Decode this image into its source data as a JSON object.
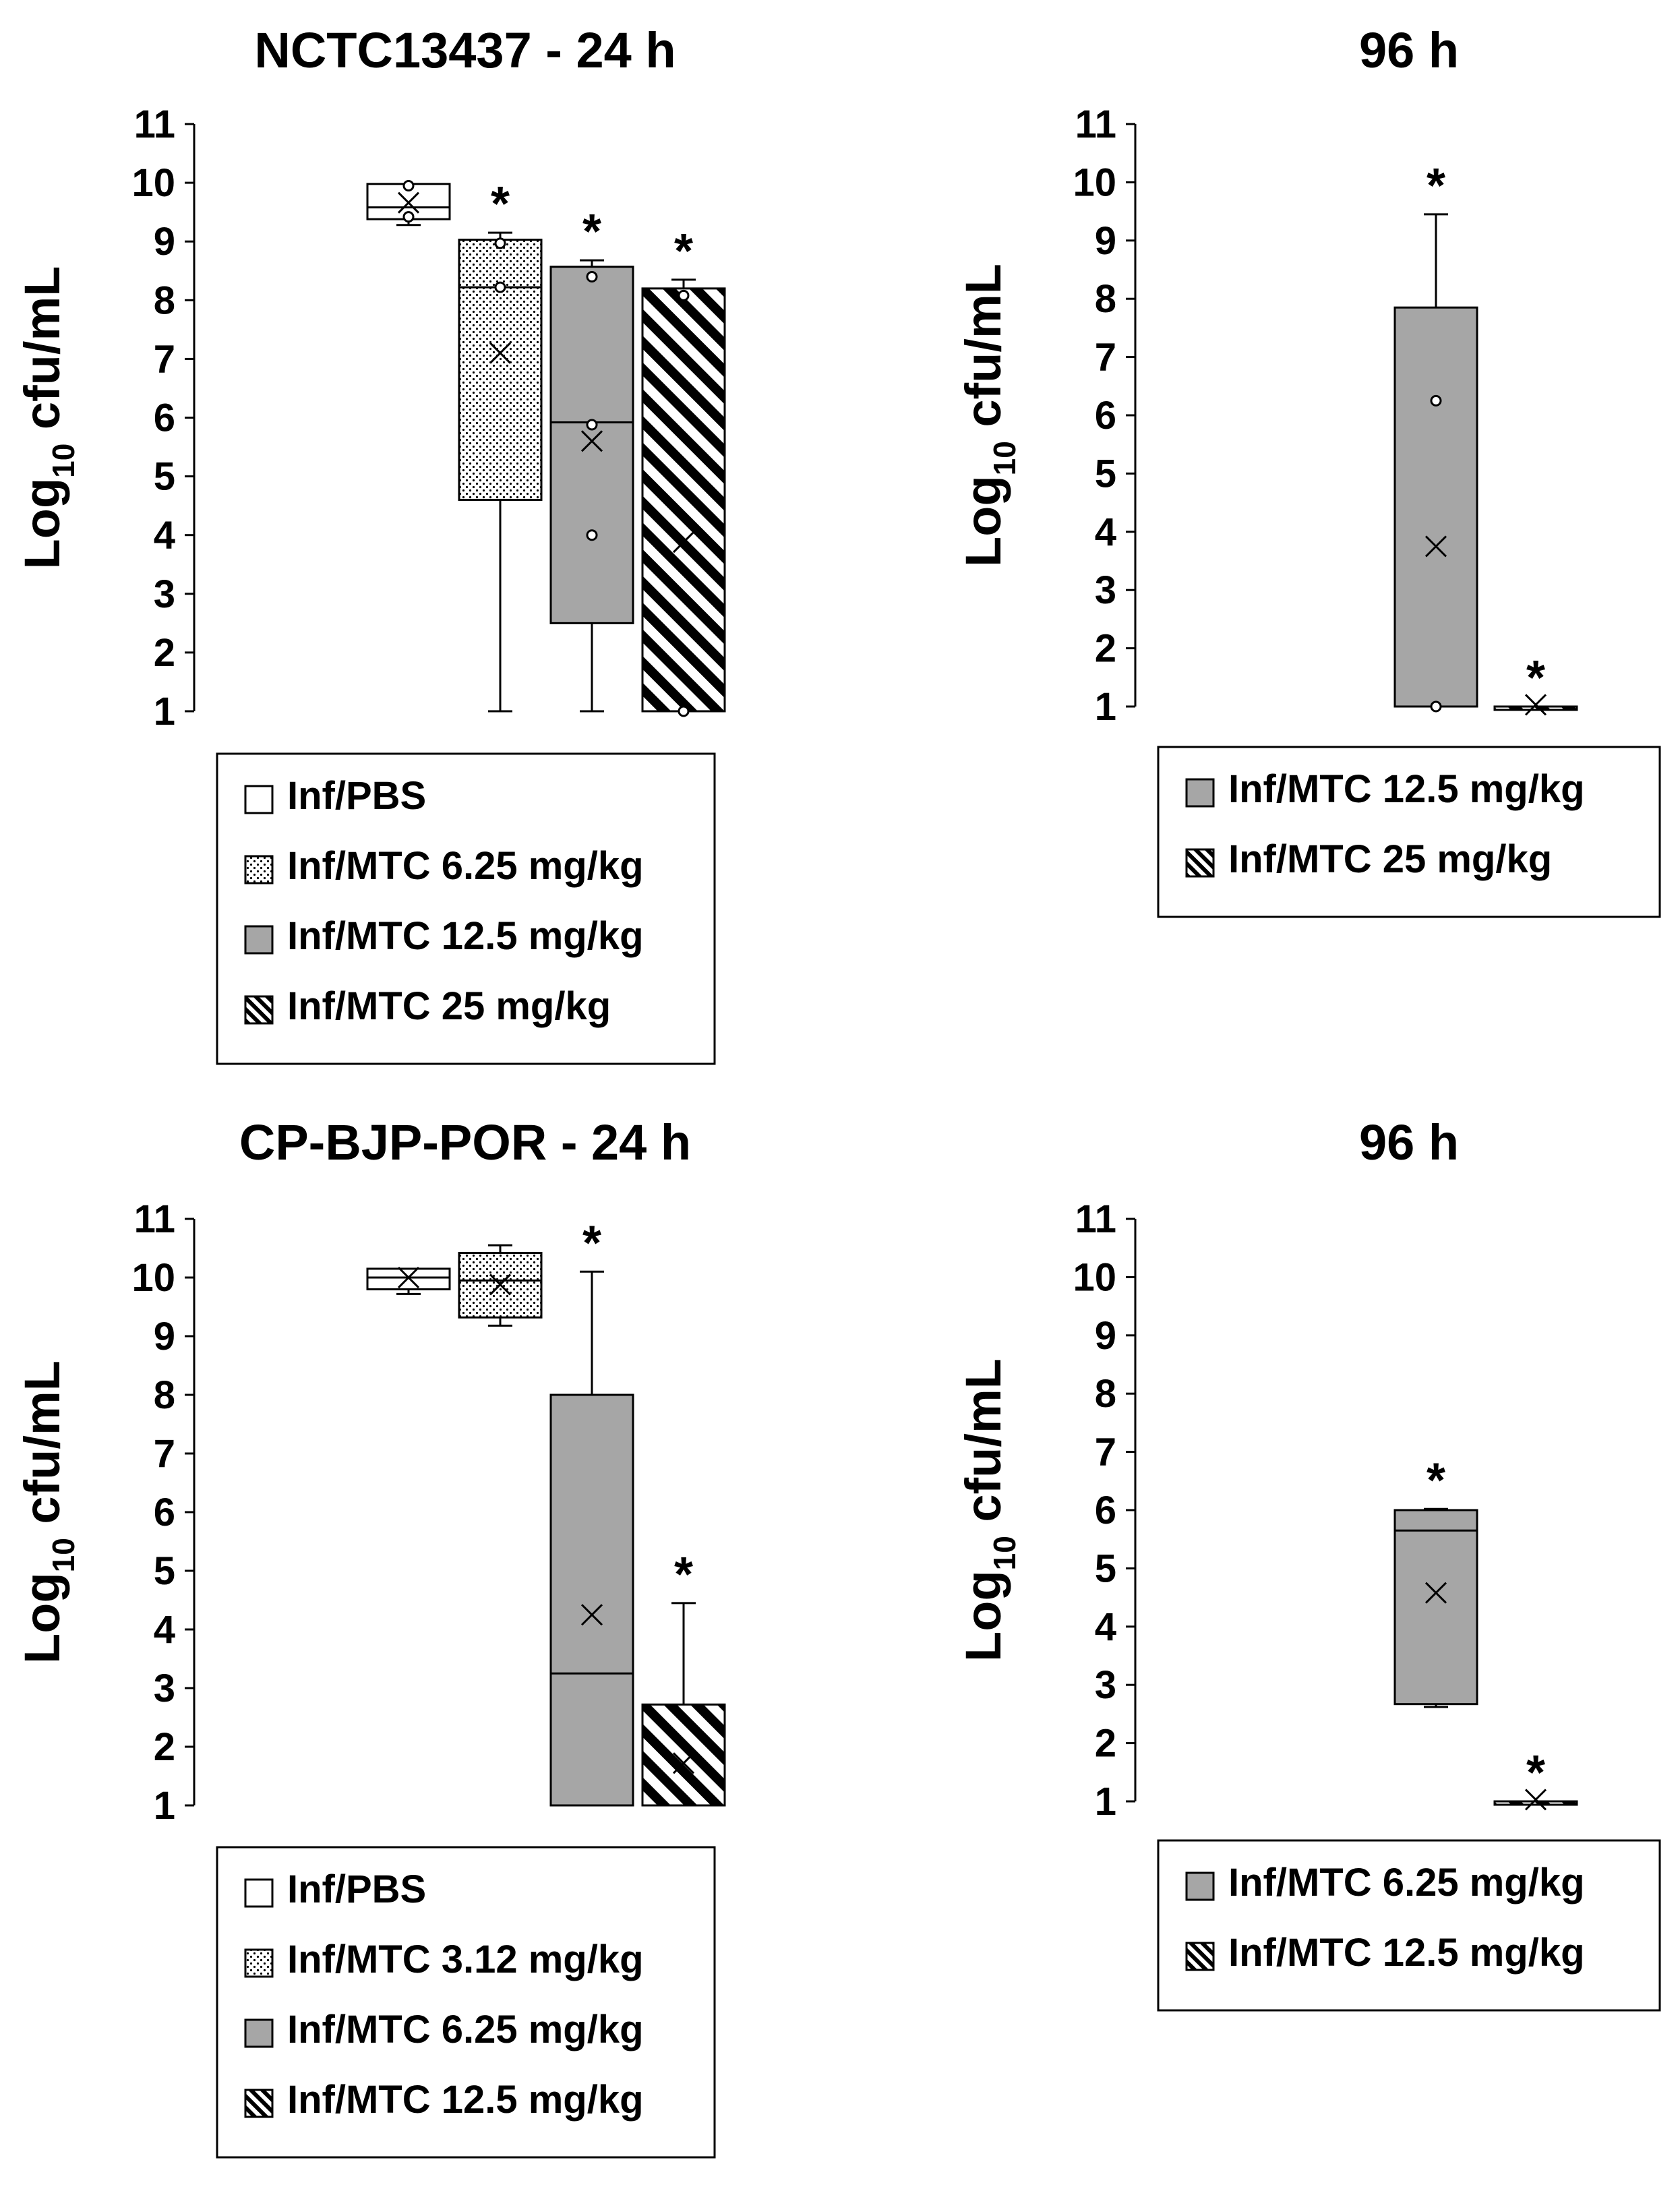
{
  "colors": {
    "white": "#ffffff",
    "gray": "#a6a6a6",
    "black": "#000000"
  },
  "chart_data": [
    {
      "type": "box",
      "title": "NCTC13437 - 24 h",
      "ylabel": {
        "prefix": "Log",
        "sub": "10",
        "suffix": " cfu/mL"
      },
      "ylim": [
        1,
        11
      ],
      "yticks": [
        "1",
        "2",
        "3",
        "4",
        "5",
        "6",
        "7",
        "8",
        "9",
        "10",
        "11"
      ],
      "star_mark": "*",
      "series": [
        {
          "name": "Inf/PBS",
          "fill": "white",
          "min": 9.28,
          "q1": 9.38,
          "median": 9.58,
          "q3": 9.98,
          "max": 9.98,
          "mean": 9.66,
          "points": [
            9.95,
            9.42
          ],
          "star": false
        },
        {
          "name": "Inf/MTC 6.25 mg/kg",
          "fill": "dots",
          "min": 1.0,
          "q1": 4.6,
          "median": 8.22,
          "q3": 9.03,
          "max": 9.15,
          "mean": 7.1,
          "points": [
            8.97,
            8.22
          ],
          "star": true
        },
        {
          "name": "Inf/MTC 12.5 mg/kg",
          "fill": "gray",
          "min": 1.0,
          "q1": 2.5,
          "median": 5.92,
          "q3": 8.57,
          "max": 8.68,
          "mean": 5.6,
          "points": [
            8.4,
            5.88,
            4.0
          ],
          "star": true
        },
        {
          "name": "Inf/MTC 25 mg/kg",
          "fill": "hatch",
          "min": 1.0,
          "q1": 1.0,
          "median": 1.0,
          "q3": 8.2,
          "max": 8.35,
          "mean": 3.88,
          "points": [
            8.08,
            1.0
          ],
          "star": true
        }
      ],
      "legend": [
        "Inf/PBS",
        "Inf/MTC 6.25 mg/kg",
        "Inf/MTC 12.5 mg/kg",
        "Inf/MTC 25 mg/kg"
      ]
    },
    {
      "type": "box",
      "title": "96 h",
      "ylabel": {
        "prefix": "Log",
        "sub": "10",
        "suffix": " cfu/mL"
      },
      "ylim": [
        1,
        11
      ],
      "yticks": [
        "1",
        "2",
        "3",
        "4",
        "5",
        "6",
        "7",
        "8",
        "9",
        "10",
        "11"
      ],
      "star_mark": "*",
      "series": [
        {
          "name": "Inf/MTC 12.5 mg/kg",
          "fill": "gray",
          "min": 1.0,
          "q1": 1.0,
          "median": 1.0,
          "q3": 7.85,
          "max": 9.45,
          "mean": 3.75,
          "points": [
            6.25,
            1.0
          ],
          "star": true
        },
        {
          "name": "Inf/MTC 25 mg/kg",
          "fill": "hatch",
          "min": 1.0,
          "q1": 1.0,
          "median": 1.0,
          "q3": 1.0,
          "max": 1.0,
          "mean": 1.03,
          "points": [],
          "star": true
        }
      ],
      "legend": [
        "Inf/MTC 12.5 mg/kg",
        "Inf/MTC 25 mg/kg"
      ]
    },
    {
      "type": "box",
      "title": "CP-BJP-POR - 24 h",
      "ylabel": {
        "prefix": "Log",
        "sub": "10",
        "suffix": " cfu/mL"
      },
      "ylim": [
        1,
        11
      ],
      "yticks": [
        "1",
        "2",
        "3",
        "4",
        "5",
        "6",
        "7",
        "8",
        "9",
        "10",
        "11"
      ],
      "star_mark": "*",
      "series": [
        {
          "name": "Inf/PBS",
          "fill": "white",
          "min": 9.72,
          "q1": 9.8,
          "median": 10.0,
          "q3": 10.15,
          "max": 10.15,
          "mean": 10.0,
          "points": [],
          "star": false
        },
        {
          "name": "Inf/MTC 3.12 mg/kg",
          "fill": "dots",
          "min": 9.18,
          "q1": 9.32,
          "median": 9.95,
          "q3": 10.42,
          "max": 10.55,
          "mean": 9.88,
          "points": [],
          "star": false
        },
        {
          "name": "Inf/MTC 6.25 mg/kg",
          "fill": "gray",
          "min": 1.0,
          "q1": 1.0,
          "median": 3.25,
          "q3": 8.0,
          "max": 10.1,
          "mean": 4.25,
          "points": [],
          "star": true
        },
        {
          "name": "Inf/MTC 12.5 mg/kg",
          "fill": "hatch",
          "min": 1.0,
          "q1": 1.0,
          "median": 1.0,
          "q3": 2.72,
          "max": 4.45,
          "mean": 1.72,
          "points": [],
          "star": true
        }
      ],
      "legend": [
        "Inf/PBS",
        "Inf/MTC 3.12 mg/kg",
        "Inf/MTC 6.25 mg/kg",
        "Inf/MTC 12.5 mg/kg"
      ]
    },
    {
      "type": "box",
      "title": "96 h",
      "ylabel": {
        "prefix": "Log",
        "sub": "10",
        "suffix": " cfu/mL"
      },
      "ylim": [
        1,
        11
      ],
      "yticks": [
        "1",
        "2",
        "3",
        "4",
        "5",
        "6",
        "7",
        "8",
        "9",
        "10",
        "11"
      ],
      "star_mark": "*",
      "series": [
        {
          "name": "Inf/MTC 6.25 mg/kg",
          "fill": "gray",
          "min": 2.62,
          "q1": 2.67,
          "median": 5.65,
          "q3": 6.0,
          "max": 6.02,
          "mean": 4.58,
          "points": [],
          "star": true
        },
        {
          "name": "Inf/MTC 12.5 mg/kg",
          "fill": "hatch",
          "min": 1.0,
          "q1": 1.0,
          "median": 1.0,
          "q3": 1.0,
          "max": 1.0,
          "mean": 1.03,
          "points": [],
          "star": true
        }
      ],
      "legend": [
        "Inf/MTC 6.25 mg/kg",
        "Inf/MTC 12.5 mg/kg"
      ]
    }
  ]
}
